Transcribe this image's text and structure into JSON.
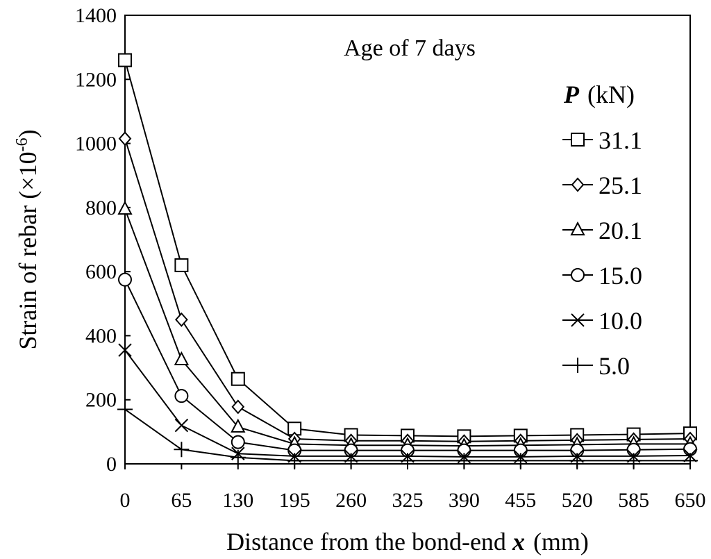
{
  "chart_data": {
    "type": "line",
    "title": "",
    "annotation": "Age of 7 days",
    "xlabel_main": "Distance from the bond-end ",
    "xlabel_var": "x",
    "xlabel_unit": "(mm)",
    "ylabel_main": "Strain of rebar (×10",
    "ylabel_exp": "-6",
    "ylabel_close": ")",
    "legend_title_var": "P",
    "legend_title_unit": "(kN)",
    "x": [
      0,
      65,
      130,
      195,
      260,
      325,
      390,
      455,
      520,
      585,
      650
    ],
    "x_tick_labels": [
      "0",
      "65",
      "130",
      "195",
      "260",
      "325",
      "390",
      "455",
      "520",
      "585",
      "650"
    ],
    "xlim": [
      0,
      650
    ],
    "ylim": [
      0,
      1400
    ],
    "y_ticks": [
      0,
      200,
      400,
      600,
      800,
      1000,
      1200,
      1400
    ],
    "y_tick_labels": [
      "0",
      "200",
      "400",
      "600",
      "800",
      "1000",
      "1200",
      "1400"
    ],
    "grid": false,
    "legend_position": "right",
    "series": [
      {
        "name": "31.1",
        "marker": "square",
        "values": [
          1260,
          620,
          265,
          110,
          90,
          88,
          86,
          88,
          90,
          92,
          95
        ]
      },
      {
        "name": "25.1",
        "marker": "diamond",
        "values": [
          1015,
          450,
          178,
          78,
          72,
          72,
          70,
          72,
          74,
          76,
          78
        ]
      },
      {
        "name": "20.1",
        "marker": "triangle",
        "values": [
          795,
          325,
          115,
          62,
          58,
          58,
          56,
          58,
          60,
          62,
          62
        ]
      },
      {
        "name": "15.0",
        "marker": "circle",
        "values": [
          575,
          212,
          68,
          42,
          42,
          42,
          42,
          42,
          42,
          44,
          46
        ]
      },
      {
        "name": "10.0",
        "marker": "x",
        "values": [
          355,
          120,
          32,
          24,
          24,
          24,
          22,
          22,
          24,
          24,
          26
        ]
      },
      {
        "name": "5.0",
        "marker": "plus",
        "values": [
          170,
          45,
          20,
          10,
          10,
          10,
          10,
          10,
          10,
          10,
          10
        ]
      }
    ]
  }
}
